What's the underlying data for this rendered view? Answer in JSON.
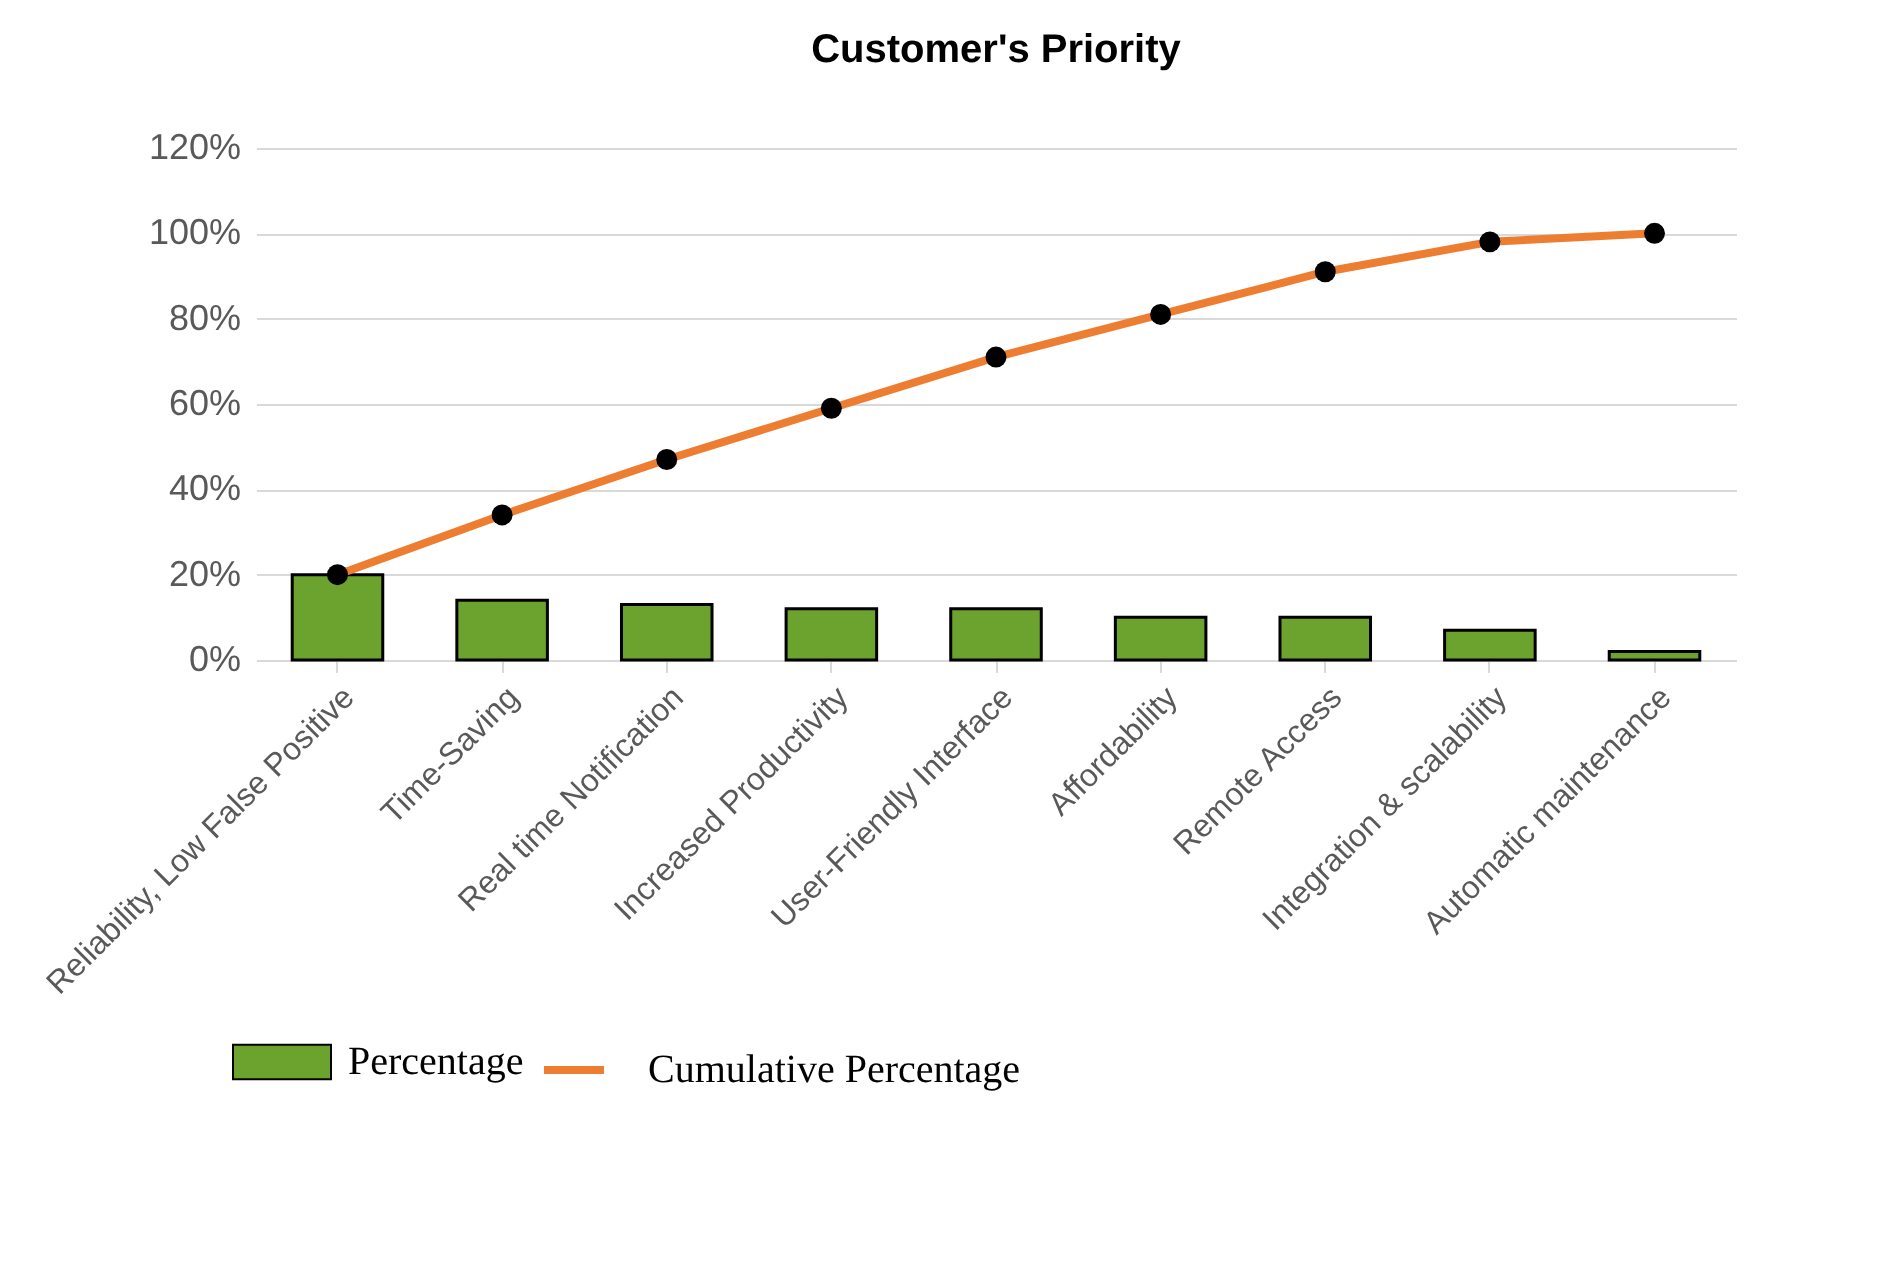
{
  "chart_data": {
    "type": "bar",
    "title": "Customer's Priority",
    "categories": [
      "Reliability, Low False Positive",
      "Time-Saving",
      "Real time Notification",
      "Increased Productivity",
      "User-Friendly Interface",
      "Affordability",
      "Remote Access",
      "Integration & scalability",
      "Automatic maintenance"
    ],
    "series": [
      {
        "name": "Percentage",
        "color": "#6ca22e",
        "values": [
          20,
          14,
          13,
          12,
          12,
          10,
          10,
          7,
          2
        ]
      },
      {
        "name": "Cumulative Percentage",
        "type": "line",
        "color": "#ed7d31",
        "marker": "circle",
        "values": [
          20,
          34,
          47,
          59,
          71,
          81,
          91,
          98,
          100
        ]
      }
    ],
    "ylim": [
      0,
      120
    ],
    "yticks": [
      {
        "value": 0,
        "label": "0%"
      },
      {
        "value": 20,
        "label": "20%"
      },
      {
        "value": 40,
        "label": "40%"
      },
      {
        "value": 60,
        "label": "60%"
      },
      {
        "value": 80,
        "label": "80%"
      },
      {
        "value": 100,
        "label": "100%"
      },
      {
        "value": 120,
        "label": "120%"
      }
    ],
    "grid": "y",
    "legend": "bottom"
  }
}
